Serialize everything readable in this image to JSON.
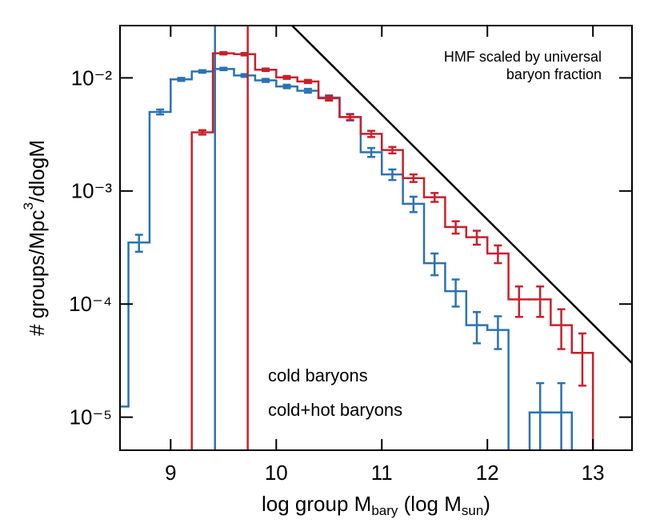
{
  "chart_data": {
    "type": "histogram",
    "xlabel": [
      "log group M",
      "bary",
      " (log M",
      "sun",
      ")"
    ],
    "ylabel": [
      "# groups/Mpc",
      "3",
      "/dlogM"
    ],
    "annotation": [
      "HMF scaled by universal",
      "baryon fraction"
    ],
    "log_y": true,
    "xlim": [
      8.52,
      13.37
    ],
    "ylim": [
      5.1e-06,
      0.029
    ],
    "xticks": [
      9,
      10,
      11,
      12,
      13
    ],
    "yticks": [
      {
        "value": 1e-05,
        "label": "10⁻⁵"
      },
      {
        "value": 0.0001,
        "label": "10⁻⁴"
      },
      {
        "value": 0.001,
        "label": "10⁻³"
      },
      {
        "value": 0.01,
        "label": "10⁻²"
      }
    ],
    "bins": [
      8.4,
      8.6,
      8.8,
      9.0,
      9.2,
      9.4,
      9.6,
      9.8,
      10.0,
      10.2,
      10.4,
      10.6,
      10.8,
      11.0,
      11.2,
      11.4,
      11.6,
      11.8,
      12.0,
      12.2,
      12.4,
      12.6,
      12.8,
      13.0,
      13.2
    ],
    "series": [
      {
        "name": "cold baryons",
        "color": "#2a72b5",
        "vline": 9.42,
        "values": [
          1.24e-05,
          0.00035,
          0.005,
          0.0097,
          0.0114,
          0.012,
          0.0105,
          0.0095,
          0.0084,
          0.0077,
          0.0067,
          0.0045,
          0.0022,
          0.0014,
          0.00077,
          0.00023,
          0.00013,
          6.5e-05,
          5.9e-05,
          null,
          1.1e-05,
          1.1e-05,
          null,
          null
        ],
        "errors": [
          null,
          6e-05,
          0.00025,
          0.0003,
          0.0003,
          0.0003,
          0.0003,
          0.0003,
          0.0003,
          0.0003,
          0.0003,
          0.0003,
          0.0002,
          0.00015,
          0.00012,
          5e-05,
          3.5e-05,
          2e-05,
          1.9e-05,
          null,
          9e-06,
          9e-06,
          null,
          null
        ]
      },
      {
        "name": "cold+hot baryons",
        "color": "#c8202a",
        "vline": 9.73,
        "values": [
          null,
          null,
          null,
          null,
          0.0033,
          0.0165,
          0.0162,
          0.0118,
          0.0101,
          0.0093,
          0.0066,
          0.0045,
          0.0032,
          0.0023,
          0.0013,
          0.00088,
          0.00048,
          0.00039,
          0.00028,
          0.00011,
          0.00011,
          6.5e-05,
          3.7e-05,
          null
        ],
        "errors": [
          null,
          null,
          null,
          null,
          0.00015,
          0.0004,
          0.0004,
          0.0003,
          0.0003,
          0.0003,
          0.0003,
          0.00025,
          0.0002,
          0.00015,
          0.0001,
          8e-05,
          6e-05,
          5.5e-05,
          5e-05,
          3.3e-05,
          3.3e-05,
          2.5e-05,
          1.8e-05,
          null
        ]
      }
    ],
    "hmf": {
      "x": [
        10.15,
        13.37
      ],
      "values": [
        0.029,
        3e-05
      ],
      "color": "#000000"
    }
  }
}
